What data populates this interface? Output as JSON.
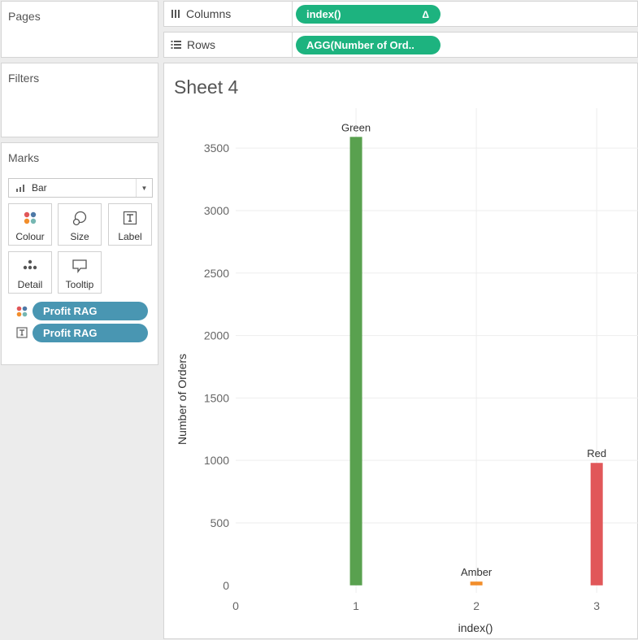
{
  "pages": {
    "title": "Pages"
  },
  "filters": {
    "title": "Filters"
  },
  "marks": {
    "title": "Marks",
    "mark_type": "Bar",
    "buttons": {
      "colour": "Colour",
      "size": "Size",
      "label": "Label",
      "detail": "Detail",
      "tooltip": "Tooltip"
    },
    "fields": [
      {
        "name": "Profit RAG",
        "encoding": "colour"
      },
      {
        "name": "Profit RAG",
        "encoding": "label"
      }
    ]
  },
  "shelves": {
    "columns_label": "Columns",
    "columns_pill": "index()",
    "columns_pill_delta": "Δ",
    "rows_label": "Rows",
    "rows_pill": "AGG(Number of Ord.."
  },
  "sheet": {
    "title": "Sheet 4"
  },
  "colors": {
    "green": "#59a14f",
    "amber": "#f28e2b",
    "red": "#e15759",
    "pill_green": "#1db37f",
    "pill_blue": "#4996b2"
  },
  "chart_data": {
    "type": "bar",
    "xlabel": "index()",
    "ylabel": "Number of Orders",
    "xlim": [
      0,
      3.35
    ],
    "ylim": [
      -60,
      3820
    ],
    "x_ticks": [
      "0",
      "1",
      "2",
      "3"
    ],
    "y_ticks": [
      "0",
      "500",
      "1000",
      "1500",
      "2000",
      "2500",
      "3000",
      "3500"
    ],
    "grid": true,
    "bars": [
      {
        "x": 1,
        "value": 3590,
        "label": "Green",
        "color": "#59a14f"
      },
      {
        "x": 2,
        "value": 30,
        "label": "Amber",
        "color": "#f28e2b"
      },
      {
        "x": 3,
        "value": 980,
        "label": "Red",
        "color": "#e15759"
      }
    ]
  }
}
